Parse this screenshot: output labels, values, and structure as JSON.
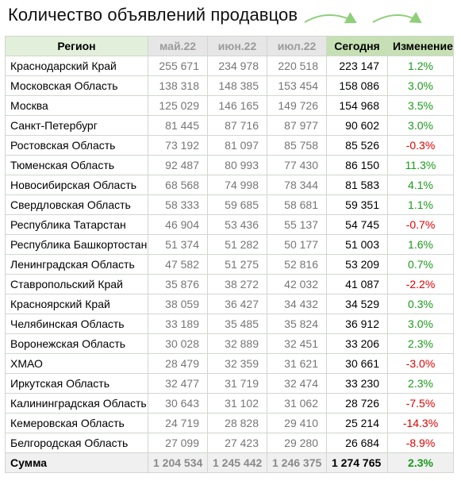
{
  "title": "Количество объявлений продавцов",
  "colors": {
    "header_green": "#c6e0b4",
    "header_region": "#e2efda",
    "header_gray": "#e7e6e6",
    "positive": "#1a9a1a",
    "negative": "#e00000"
  },
  "headers": {
    "region": "Регион",
    "may": "май.22",
    "jun": "июн.22",
    "jul": "июл.22",
    "today": "Сегодня",
    "change": "Изменение"
  },
  "rows": [
    {
      "region": "Краснодарский Край",
      "may": "255 671",
      "jun": "234 978",
      "jul": "220 518",
      "today": "223 147",
      "change": "1.2%"
    },
    {
      "region": "Московская Область",
      "may": "138 318",
      "jun": "148 385",
      "jul": "153 454",
      "today": "158 086",
      "change": "3.0%"
    },
    {
      "region": "Москва",
      "may": "125 029",
      "jun": "146 165",
      "jul": "149 726",
      "today": "154 968",
      "change": "3.5%"
    },
    {
      "region": "Санкт-Петербург",
      "may": "81 445",
      "jun": "87 716",
      "jul": "87 977",
      "today": "90 602",
      "change": "3.0%"
    },
    {
      "region": "Ростовская Область",
      "may": "73 192",
      "jun": "81 097",
      "jul": "85 758",
      "today": "85 526",
      "change": "-0.3%"
    },
    {
      "region": "Тюменская Область",
      "may": "92 487",
      "jun": "80 993",
      "jul": "77 430",
      "today": "86 150",
      "change": "11.3%"
    },
    {
      "region": "Новосибирская Область",
      "may": "68 568",
      "jun": "74 998",
      "jul": "78 344",
      "today": "81 583",
      "change": "4.1%"
    },
    {
      "region": "Свердловская Область",
      "may": "58 333",
      "jun": "59 685",
      "jul": "58 681",
      "today": "59 351",
      "change": "1.1%"
    },
    {
      "region": "Республика Татарстан",
      "may": "46 904",
      "jun": "53 436",
      "jul": "55 137",
      "today": "54 745",
      "change": "-0.7%"
    },
    {
      "region": "Республика Башкортостан",
      "may": "51 374",
      "jun": "51 282",
      "jul": "50 177",
      "today": "51 003",
      "change": "1.6%"
    },
    {
      "region": "Ленинградская Область",
      "may": "47 582",
      "jun": "51 275",
      "jul": "52 816",
      "today": "53 209",
      "change": "0.7%"
    },
    {
      "region": "Ставропольский Край",
      "may": "35 876",
      "jun": "38 272",
      "jul": "42 032",
      "today": "41 087",
      "change": "-2.2%"
    },
    {
      "region": "Красноярский Край",
      "may": "38 059",
      "jun": "36 427",
      "jul": "34 432",
      "today": "34 529",
      "change": "0.3%"
    },
    {
      "region": "Челябинская Область",
      "may": "33 189",
      "jun": "35 485",
      "jul": "35 824",
      "today": "36 912",
      "change": "3.0%"
    },
    {
      "region": "Воронежская Область",
      "may": "30 028",
      "jun": "32 889",
      "jul": "32 451",
      "today": "33 206",
      "change": "2.3%"
    },
    {
      "region": "ХМАО",
      "may": "28 479",
      "jun": "32 359",
      "jul": "31 621",
      "today": "30 661",
      "change": "-3.0%"
    },
    {
      "region": "Иркутская Область",
      "may": "32 477",
      "jun": "31 719",
      "jul": "32 474",
      "today": "33 230",
      "change": "2.3%"
    },
    {
      "region": "Калининградская Область",
      "may": "30 643",
      "jun": "31 102",
      "jul": "31 062",
      "today": "28 726",
      "change": "-7.5%"
    },
    {
      "region": "Кемеровская Область",
      "may": "24 719",
      "jun": "28 828",
      "jul": "29 410",
      "today": "25 214",
      "change": "-14.3%"
    },
    {
      "region": "Белгородская Область",
      "may": "27 099",
      "jun": "27 423",
      "jul": "29 280",
      "today": "26 684",
      "change": "-8.9%"
    }
  ],
  "total": {
    "region": "Сумма",
    "may": "1 204 534",
    "jun": "1 245 442",
    "jul": "1 246 375",
    "today": "1 274 765",
    "change": "2.3%"
  }
}
